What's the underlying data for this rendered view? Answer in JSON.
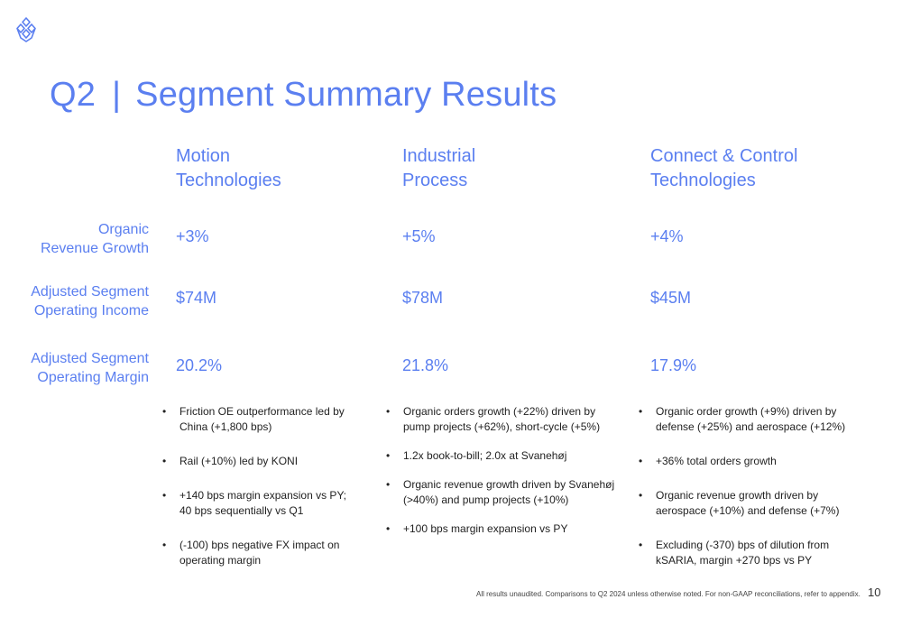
{
  "title": {
    "prefix": "Q2",
    "separator": "|",
    "text": "Segment Summary Results"
  },
  "columns": [
    {
      "heading": "Motion\nTechnologies",
      "organic_revenue_growth": "+3%",
      "adjusted_operating_income": "$74M",
      "adjusted_operating_margin": "20.2%",
      "bullets": [
        "Friction OE outperformance led by China (+1,800 bps)",
        "Rail (+10%) led by KONI",
        "+140 bps margin expansion vs PY; 40 bps sequentially vs Q1",
        "(-100) bps negative FX impact on operating margin"
      ]
    },
    {
      "heading": "Industrial\nProcess",
      "organic_revenue_growth": "+5%",
      "adjusted_operating_income": "$78M",
      "adjusted_operating_margin": "21.8%",
      "bullets": [
        "Organic orders growth (+22%) driven by pump projects (+62%), short-cycle (+5%)",
        "1.2x book-to-bill; 2.0x at Svanehøj",
        "Organic revenue growth driven by Svanehøj (>40%) and pump projects (+10%)",
        "+100 bps margin expansion vs PY"
      ]
    },
    {
      "heading": "Connect & Control\nTechnologies",
      "organic_revenue_growth": "+4%",
      "adjusted_operating_income": "$45M",
      "adjusted_operating_margin": "17.9%",
      "bullets": [
        "Organic order growth (+9%) driven by defense (+25%) and aerospace (+12%)",
        "+36% total orders growth",
        "Organic revenue growth driven by aerospace (+10%) and defense (+7%)",
        "Excluding (-370) bps of dilution from kSARIA, margin +270 bps vs PY"
      ]
    }
  ],
  "row_labels": {
    "organic_revenue_growth": "Organic\nRevenue Growth",
    "adjusted_operating_income": "Adjusted Segment\nOperating Income",
    "adjusted_operating_margin": "Adjusted Segment\nOperating Margin"
  },
  "footer": "All results unaudited. Comparisons to Q2 2024 unless otherwise noted. For non-GAAP reconciliations, refer to appendix.",
  "page_number": "10",
  "colors": {
    "accent": "#5b7ff0",
    "body_text": "#222222"
  },
  "logo_icon": "company-logo-icon"
}
